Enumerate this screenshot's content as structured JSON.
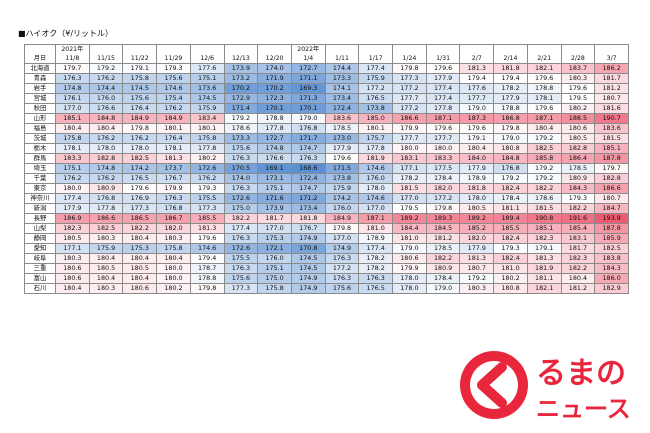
{
  "title": "■ハイオク（¥/リットル）",
  "corner": "月日",
  "year_labels": [
    "2021年",
    "",
    "",
    "",
    "",
    "",
    "",
    "2022年",
    "",
    "",
    "",
    "",
    "",
    "",
    "",
    "",
    ""
  ],
  "dates": [
    "11/8",
    "11/15",
    "11/22",
    "11/29",
    "12/6",
    "12/13",
    "12/20",
    "1/4",
    "1/11",
    "1/17",
    "1/24",
    "1/31",
    "2/7",
    "2/14",
    "2/21",
    "2/28",
    "3/7"
  ],
  "prefectures": [
    "北海道",
    "青森",
    "岩手",
    "宮城",
    "秋田",
    "山形",
    "福島",
    "茨城",
    "栃木",
    "群馬",
    "埼玉",
    "千葉",
    "東京",
    "神奈川",
    "新潟",
    "長野",
    "山梨",
    "静岡",
    "愛知",
    "岐阜",
    "三重",
    "富山",
    "石川"
  ],
  "rows": [
    [
      179.7,
      179.2,
      179.1,
      179.3,
      177.6,
      173.9,
      174.0,
      172.7,
      174.4,
      177.4,
      179.8,
      179.6,
      181.3,
      181.8,
      182.1,
      183.7,
      186.2
    ],
    [
      176.3,
      176.2,
      175.8,
      175.6,
      175.1,
      173.2,
      171.9,
      171.1,
      173.3,
      175.9,
      177.3,
      177.9,
      179.4,
      179.4,
      179.6,
      180.3,
      181.7
    ],
    [
      174.8,
      174.4,
      174.5,
      174.6,
      173.6,
      170.2,
      170.2,
      169.3,
      174.1,
      177.2,
      177.2,
      177.4,
      177.6,
      178.2,
      178.8,
      179.6,
      181.2
    ],
    [
      176.1,
      176.0,
      175.6,
      175.4,
      174.5,
      172.9,
      172.3,
      171.3,
      173.4,
      176.5,
      177.7,
      177.4,
      177.7,
      177.9,
      178.1,
      179.5,
      180.7
    ],
    [
      177.0,
      176.6,
      176.4,
      176.2,
      175.9,
      171.4,
      170.1,
      170.1,
      172.4,
      173.8,
      177.2,
      177.8,
      179.0,
      178.8,
      179.6,
      180.2,
      181.6
    ],
    [
      185.1,
      184.8,
      184.9,
      184.9,
      183.4,
      179.2,
      178.8,
      179.0,
      183.6,
      185.0,
      186.6,
      187.1,
      187.3,
      186.8,
      187.1,
      188.5,
      190.7
    ],
    [
      180.4,
      180.4,
      179.8,
      180.1,
      180.1,
      178.6,
      177.8,
      176.8,
      178.5,
      180.1,
      179.9,
      179.6,
      179.6,
      179.8,
      180.4,
      180.6,
      183.6
    ],
    [
      175.8,
      176.2,
      176.2,
      176.4,
      175.8,
      173.3,
      172.7,
      171.7,
      173.0,
      175.7,
      177.7,
      177.7,
      179.1,
      179.0,
      179.2,
      180.5,
      181.5
    ],
    [
      178.1,
      178.0,
      178.0,
      178.1,
      177.8,
      175.6,
      174.8,
      174.7,
      177.9,
      177.8,
      180.0,
      180.0,
      180.4,
      180.8,
      182.5,
      182.8,
      185.1
    ],
    [
      183.3,
      182.8,
      182.5,
      181.3,
      180.2,
      176.3,
      176.6,
      176.3,
      179.6,
      181.9,
      183.1,
      183.3,
      184.0,
      184.8,
      185.8,
      186.4,
      187.8
    ],
    [
      175.1,
      174.8,
      174.2,
      173.7,
      172.6,
      170.5,
      169.1,
      168.6,
      171.5,
      174.6,
      177.1,
      177.5,
      177.9,
      176.8,
      179.2,
      178.5,
      179.7
    ],
    [
      176.2,
      176.2,
      176.5,
      176.7,
      176.2,
      174.0,
      173.1,
      172.4,
      173.8,
      176.0,
      178.2,
      178.4,
      178.9,
      179.2,
      179.2,
      180.9,
      182.8
    ],
    [
      180.0,
      180.9,
      179.6,
      179.9,
      179.3,
      176.3,
      175.1,
      174.7,
      175.9,
      178.0,
      181.5,
      182.0,
      181.8,
      182.4,
      182.2,
      184.3,
      186.6
    ],
    [
      177.4,
      176.8,
      176.9,
      176.3,
      175.5,
      172.6,
      171.6,
      171.2,
      174.2,
      174.6,
      177.0,
      177.2,
      178.0,
      178.4,
      178.6,
      179.3,
      180.7
    ],
    [
      177.9,
      177.8,
      177.3,
      176.8,
      177.3,
      175.0,
      173.9,
      173.4,
      176.0,
      177.0,
      179.5,
      179.8,
      180.5,
      181.1,
      181.5,
      182.2,
      184.7
    ],
    [
      186.9,
      186.6,
      186.5,
      186.7,
      185.5,
      182.2,
      181.7,
      181.8,
      184.9,
      187.1,
      189.2,
      189.3,
      189.2,
      189.4,
      190.8,
      191.6,
      193.9
    ],
    [
      182.3,
      182.5,
      182.2,
      182.0,
      181.3,
      177.4,
      177.0,
      176.7,
      179.8,
      181.0,
      184.4,
      184.5,
      185.2,
      185.5,
      185.1,
      185.4,
      187.8
    ],
    [
      180.5,
      180.3,
      180.4,
      180.3,
      179.6,
      176.3,
      175.3,
      174.9,
      177.0,
      178.9,
      181.0,
      181.2,
      182.0,
      182.4,
      182.3,
      183.1,
      185.9
    ],
    [
      177.1,
      175.9,
      175.3,
      175.8,
      174.6,
      172.6,
      172.1,
      170.8,
      174.9,
      177.4,
      179.0,
      178.5,
      177.9,
      179.3,
      179.1,
      181.7,
      182.5
    ],
    [
      180.3,
      180.4,
      180.4,
      180.4,
      179.4,
      175.5,
      176.0,
      174.5,
      176.3,
      178.2,
      180.6,
      182.2,
      181.3,
      182.4,
      181.3,
      182.3,
      183.8
    ],
    [
      180.6,
      180.5,
      180.5,
      180.0,
      178.7,
      176.3,
      175.1,
      174.5,
      177.2,
      178.2,
      179.9,
      180.9,
      180.7,
      181.0,
      181.9,
      182.2,
      184.3
    ],
    [
      180.6,
      180.4,
      180.4,
      180.0,
      178.8,
      175.6,
      175.0,
      174.9,
      176.3,
      176.3,
      178.0,
      178.4,
      179.2,
      180.2,
      181.1,
      180.4,
      186.0
    ],
    [
      180.4,
      180.3,
      180.6,
      180.2,
      179.8,
      177.3,
      175.8,
      174.9,
      175.6,
      176.5,
      178.0,
      179.0,
      180.3,
      180.8,
      182.1,
      181.2,
      182.9
    ]
  ],
  "colors": {
    "low": "#5a8fd2",
    "mid": "#ffffff",
    "high": "#ee5a70",
    "watermark": "#e8152c"
  },
  "color_scale": {
    "low": 168.6,
    "mid": 179.5,
    "high": 193.9
  },
  "watermark": {
    "line1": "るまの",
    "line2": "ニュース",
    "icon": "car-logo-icon"
  }
}
